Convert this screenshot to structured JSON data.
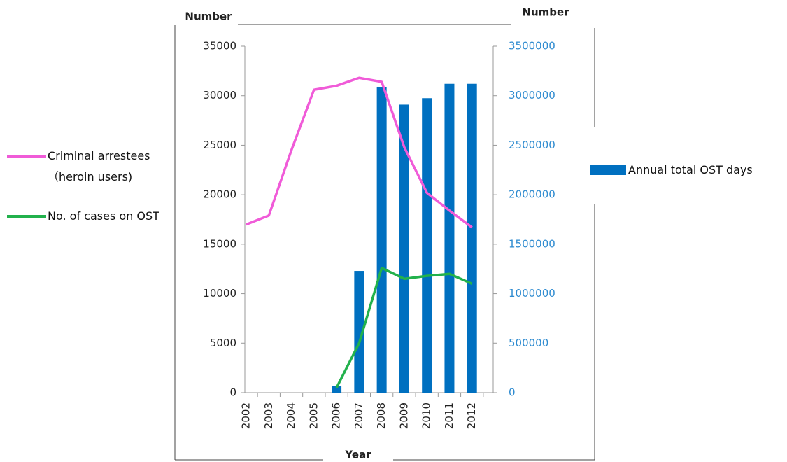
{
  "chart_data": {
    "type": "combo",
    "x_label": "Year",
    "y_label": "Number",
    "y2_label": "Number",
    "categories": [
      "2002",
      "2003",
      "2004",
      "2005",
      "2006",
      "2007",
      "2008",
      "2009",
      "2010",
      "2011",
      "2012"
    ],
    "ylim": [
      0,
      35000
    ],
    "yticks": [
      0,
      5000,
      10000,
      15000,
      20000,
      25000,
      30000,
      35000
    ],
    "y2lim": [
      0,
      3500000
    ],
    "y2ticks": [
      0,
      500000,
      1000000,
      1500000,
      2000000,
      2500000,
      3000000,
      3500000
    ],
    "series": [
      {
        "name": "Annual total OST days",
        "type": "bar",
        "axis": "y2",
        "color": "#0070c0",
        "values": [
          null,
          null,
          null,
          null,
          70000,
          1230000,
          3090000,
          2910000,
          2975000,
          3120000,
          3120000
        ]
      },
      {
        "name": "Criminal arrestees（heroin users)",
        "type": "line",
        "color": "#f05bd8",
        "values": [
          17000,
          17900,
          24500,
          30600,
          31000,
          31800,
          31400,
          24800,
          20200,
          18400,
          16700
        ]
      },
      {
        "name": "No. of cases on OST",
        "type": "line",
        "color": "#22b14c",
        "values": [
          null,
          null,
          null,
          null,
          500,
          5000,
          12600,
          11500,
          11800,
          12000,
          11000
        ]
      }
    ]
  }
}
